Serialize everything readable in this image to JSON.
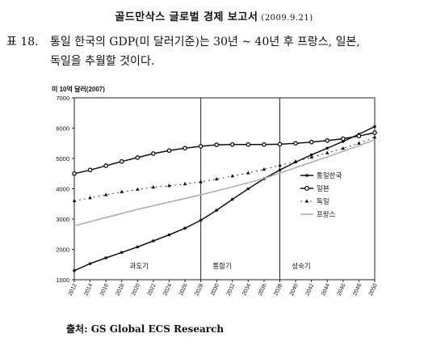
{
  "header": {
    "title": "골드만삭스 글로벌 경제 보고서",
    "date": "(2009.9.21)"
  },
  "caption": {
    "label": "표 18.",
    "line1": "통일 한국의 GDP(미 달러기준)는 30년 ~ 40년 후 프랑스, 일본,",
    "line2": "독일을 추월할 것이다."
  },
  "source": "출처: GS Global ECS Research",
  "chart_data": {
    "type": "line",
    "ylabel": "미 10억 달러(2007)",
    "ylim": [
      1000,
      7000
    ],
    "yticks": [
      1000,
      2000,
      3000,
      4000,
      5000,
      6000,
      7000
    ],
    "xlim": [
      2012,
      2050
    ],
    "xticks": [
      2012,
      2014,
      2016,
      2018,
      2020,
      2022,
      2024,
      2026,
      2028,
      2030,
      2032,
      2034,
      2036,
      2038,
      2040,
      2042,
      2044,
      2046,
      2048,
      2050
    ],
    "grid": false,
    "legend_position": "right",
    "dividers": [
      2028,
      2038
    ],
    "annotations": [
      {
        "text": "과도기",
        "x": 2019
      },
      {
        "text": "통합기",
        "x": 2029.5
      },
      {
        "text": "성숙기",
        "x": 2039.5
      }
    ],
    "series": [
      {
        "name": "통일한국",
        "color": "#111111",
        "marker": "dot",
        "dash": "",
        "points": [
          [
            2012,
            1300
          ],
          [
            2014,
            1530
          ],
          [
            2016,
            1720
          ],
          [
            2018,
            1900
          ],
          [
            2020,
            2080
          ],
          [
            2022,
            2280
          ],
          [
            2024,
            2480
          ],
          [
            2026,
            2700
          ],
          [
            2028,
            2960
          ],
          [
            2030,
            3290
          ],
          [
            2032,
            3650
          ],
          [
            2034,
            4000
          ],
          [
            2036,
            4330
          ],
          [
            2038,
            4620
          ],
          [
            2040,
            4880
          ],
          [
            2042,
            5120
          ],
          [
            2044,
            5340
          ],
          [
            2046,
            5560
          ],
          [
            2048,
            5800
          ],
          [
            2050,
            6050
          ]
        ]
      },
      {
        "name": "일본",
        "color": "#111111",
        "marker": "ring",
        "dash": "",
        "points": [
          [
            2012,
            4500
          ],
          [
            2014,
            4620
          ],
          [
            2016,
            4760
          ],
          [
            2018,
            4900
          ],
          [
            2020,
            5030
          ],
          [
            2022,
            5160
          ],
          [
            2024,
            5260
          ],
          [
            2026,
            5340
          ],
          [
            2028,
            5400
          ],
          [
            2030,
            5450
          ],
          [
            2032,
            5460
          ],
          [
            2034,
            5460
          ],
          [
            2036,
            5460
          ],
          [
            2038,
            5470
          ],
          [
            2040,
            5500
          ],
          [
            2042,
            5540
          ],
          [
            2044,
            5590
          ],
          [
            2046,
            5650
          ],
          [
            2048,
            5740
          ],
          [
            2050,
            5850
          ]
        ]
      },
      {
        "name": "독일",
        "color": "#111111",
        "marker": "triangle",
        "dash": "2,4",
        "points": [
          [
            2012,
            3600
          ],
          [
            2014,
            3700
          ],
          [
            2016,
            3800
          ],
          [
            2018,
            3900
          ],
          [
            2020,
            3980
          ],
          [
            2022,
            4050
          ],
          [
            2024,
            4100
          ],
          [
            2026,
            4160
          ],
          [
            2028,
            4230
          ],
          [
            2030,
            4320
          ],
          [
            2032,
            4420
          ],
          [
            2034,
            4520
          ],
          [
            2036,
            4640
          ],
          [
            2038,
            4770
          ],
          [
            2040,
            4900
          ],
          [
            2042,
            5040
          ],
          [
            2044,
            5180
          ],
          [
            2046,
            5330
          ],
          [
            2048,
            5500
          ],
          [
            2050,
            5700
          ]
        ]
      },
      {
        "name": "프랑스",
        "color": "#aaaaaa",
        "marker": "none",
        "dash": "",
        "points": [
          [
            2012,
            2780
          ],
          [
            2016,
            3050
          ],
          [
            2020,
            3320
          ],
          [
            2024,
            3560
          ],
          [
            2028,
            3800
          ],
          [
            2032,
            4060
          ],
          [
            2036,
            4340
          ],
          [
            2040,
            4700
          ],
          [
            2044,
            5050
          ],
          [
            2048,
            5420
          ],
          [
            2050,
            5620
          ]
        ]
      }
    ]
  }
}
